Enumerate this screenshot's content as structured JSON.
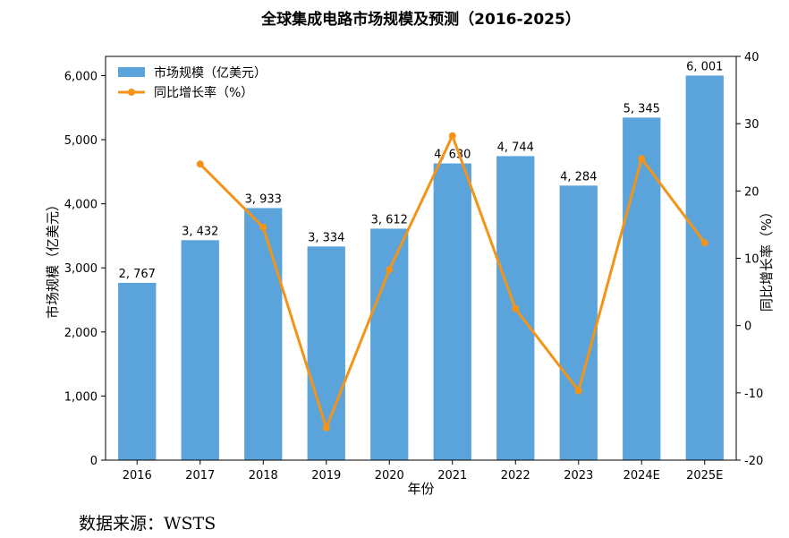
{
  "chart_data": {
    "type": "bar+line",
    "title": "全球集成电路市场规模及预测（2016-2025）",
    "xlabel": "年份",
    "ylabel": "市场规模（亿美元）",
    "y2label": "同比增长率（%）",
    "categories": [
      "2016",
      "2017",
      "2018",
      "2019",
      "2020",
      "2021",
      "2022",
      "2023",
      "2024E",
      "2025E"
    ],
    "series": [
      {
        "name": "市场规模（亿美元）",
        "type": "bar",
        "axis": "left",
        "color": "#5BA3DB",
        "values": [
          2767,
          3432,
          3933,
          3334,
          3612,
          4630,
          4744,
          4284,
          5345,
          6001
        ],
        "labels": [
          "2, 767",
          "3, 432",
          "3, 933",
          "3, 334",
          "3, 612",
          "4, 630",
          "4, 744",
          "4, 284",
          "5, 345",
          "6, 001"
        ]
      },
      {
        "name": "同比增长率（%）",
        "type": "line",
        "axis": "right",
        "color": "#F39419",
        "values": [
          null,
          24.0,
          14.6,
          -15.2,
          8.3,
          28.2,
          2.5,
          -9.7,
          24.8,
          12.3
        ]
      }
    ],
    "ylim": [
      0,
      6300
    ],
    "yticks": [
      0,
      1000,
      2000,
      3000,
      4000,
      5000,
      6000
    ],
    "ytick_labels": [
      "0",
      "1,000",
      "2,000",
      "3,000",
      "4,000",
      "5,000",
      "6,000"
    ],
    "y2lim": [
      -20,
      40
    ],
    "y2ticks": [
      -20,
      -10,
      0,
      10,
      20,
      30,
      40
    ],
    "y2tick_labels": [
      "-20",
      "-10",
      "0",
      "10",
      "20",
      "30",
      "40"
    ],
    "legend": "top-left",
    "grid": false
  },
  "source_text": "数据来源：WSTS"
}
